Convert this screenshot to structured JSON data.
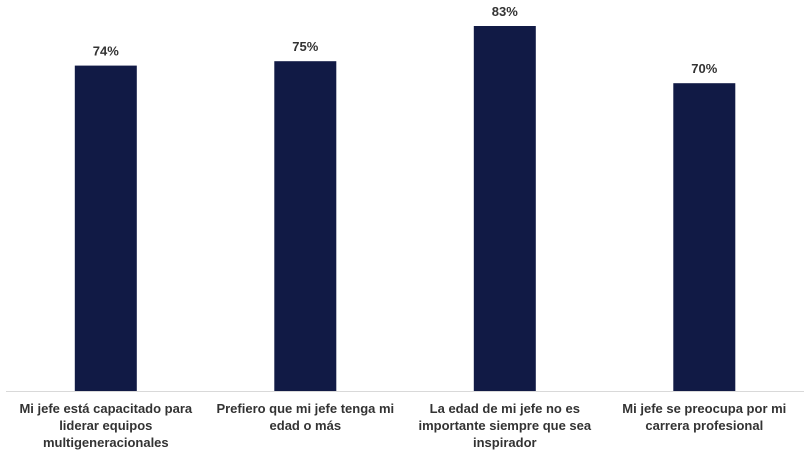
{
  "chart_data": {
    "type": "bar",
    "categories": [
      "Mi jefe está capacitado para liderar equipos multigeneracionales",
      "Prefiero que mi jefe tenga mi edad o más",
      "La edad de mi jefe no es importante siempre que sea inspirador",
      "Mi jefe se preocupa por mi carrera profesional"
    ],
    "values": [
      74,
      75,
      83,
      70
    ],
    "value_labels": [
      "74%",
      "75%",
      "83%",
      "70%"
    ],
    "unit": "%",
    "ylim": [
      0,
      83
    ],
    "grid": false,
    "legend": "none",
    "title": "",
    "xlabel": "",
    "ylabel": "",
    "colors": {
      "bar": "#111a45",
      "axis": "#d9d9d9",
      "text": "#333333"
    }
  }
}
